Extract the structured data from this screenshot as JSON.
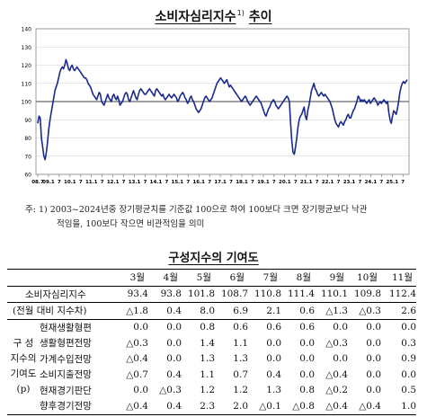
{
  "chart_title": "소비자심리지수",
  "chart_title_sup": "1)",
  "chart_title_suffix": "추이",
  "chart_data": {
    "type": "line",
    "title": "소비자심리지수 추이",
    "ylim": [
      60,
      140
    ],
    "yticks": [
      60,
      70,
      80,
      90,
      100,
      110,
      120,
      130,
      140
    ],
    "xticks": [
      "08.7",
      "09.1",
      "7",
      "10.1",
      "7",
      "11.1",
      "7",
      "12.1",
      "7",
      "13.1",
      "7",
      "14.1",
      "7",
      "15.1",
      "7",
      "16.1",
      "7",
      "17.1",
      "7",
      "18.1",
      "7",
      "19.1",
      "7",
      "20.1",
      "7",
      "21.1",
      "7",
      "22.1",
      "7",
      "23.1",
      "7",
      "24.1",
      "7",
      "25.1",
      "7"
    ],
    "x_start": "2008.7",
    "series": [
      {
        "color": "#1a2a8c",
        "values": [
          88,
          92,
          91,
          80,
          75,
          70,
          68,
          72,
          78,
          85,
          90,
          94,
          98,
          102,
          106,
          108,
          110,
          113,
          116,
          118,
          119,
          118,
          120,
          123,
          121,
          118,
          117,
          119,
          120,
          118,
          117,
          118,
          119,
          118,
          117,
          116,
          115,
          114,
          113,
          113,
          112,
          110,
          109,
          108,
          106,
          104,
          103,
          102,
          101,
          103,
          105,
          104,
          100,
          99,
          98,
          100,
          102,
          104,
          102,
          101,
          100,
          103,
          104,
          102,
          101,
          103,
          101,
          98,
          99,
          100,
          102,
          104,
          105,
          104,
          101,
          100,
          102,
          104,
          106,
          104,
          102,
          101,
          104,
          106,
          107,
          106,
          105,
          104,
          104,
          105,
          106,
          107,
          106,
          105,
          104,
          103,
          106,
          107,
          106,
          105,
          104,
          103,
          104,
          102,
          101,
          102,
          103,
          104,
          103,
          102,
          103,
          104,
          103,
          102,
          100,
          101,
          103,
          104,
          105,
          104,
          102,
          101,
          99,
          100,
          102,
          103,
          101,
          100,
          98,
          96,
          95,
          94,
          95,
          96,
          98,
          100,
          102,
          103,
          102,
          101,
          100,
          101,
          102,
          104,
          106,
          108,
          110,
          111,
          112,
          113,
          112,
          111,
          110,
          111,
          112,
          110,
          108,
          109,
          108,
          107,
          106,
          105,
          104,
          103,
          102,
          101,
          100,
          101,
          102,
          103,
          102,
          100,
          99,
          98,
          99,
          100,
          101,
          102,
          103,
          102,
          101,
          100,
          99,
          97,
          95,
          93,
          92,
          94,
          96,
          97,
          99,
          100,
          101,
          100,
          98,
          97,
          96,
          97,
          98,
          99,
          100,
          101,
          102,
          103,
          102,
          100,
          88,
          78,
          72,
          71,
          75,
          80,
          86,
          90,
          92,
          93,
          95,
          97,
          92,
          90,
          95,
          98,
          102,
          106,
          108,
          110,
          107,
          106,
          104,
          103,
          104,
          105,
          104,
          103,
          104,
          103,
          102,
          101,
          100,
          98,
          96,
          93,
          90,
          88,
          87,
          86,
          88,
          89,
          88,
          87,
          89,
          90,
          92,
          93,
          91,
          91,
          93,
          95,
          96,
          98,
          100,
          103,
          102,
          100,
          101,
          100,
          101,
          100,
          99,
          100,
          101,
          99,
          100,
          101,
          102,
          101,
          100,
          98,
          99,
          100,
          99,
          100,
          101,
          100,
          99,
          100,
          94,
          90,
          88,
          92,
          95,
          94,
          93,
          96,
          100,
          105,
          108,
          110,
          111,
          110,
          111,
          112
        ]
      }
    ]
  },
  "note": {
    "line1": "주: 1) 2003~2024년중 장기평균치를 기준값 100으로 하여 100보다 크면 장기평균보다 낙관",
    "line2": "적임을, 100보다 작으면 비관적임을 의미"
  },
  "table_title": "구성지수의 기여도",
  "table": {
    "months": [
      "3월",
      "4월",
      "5월",
      "6월",
      "7월",
      "8월",
      "9월",
      "10월",
      "11월"
    ],
    "main_label": "소비자심리지수",
    "main_values": [
      "93.4",
      "93.8",
      "101.8",
      "108.7",
      "110.8",
      "111.4",
      "110.1",
      "109.8",
      "112.4"
    ],
    "change_label": "(전월 대비 지수차)",
    "change_values": [
      "△1.8",
      "0.4",
      "8.0",
      "6.9",
      "2.1",
      "0.6",
      "△1.3",
      "△0.3",
      "2.6"
    ],
    "group_label_lines": [
      "구  성",
      "지수의",
      "기여도",
      "(p)"
    ],
    "rows": [
      {
        "label": "현재생활형편",
        "values": [
          "0.0",
          "0.0",
          "0.8",
          "0.6",
          "0.6",
          "0.6",
          "0.0",
          "0.0",
          "0.0"
        ]
      },
      {
        "label": "생활형편전망",
        "values": [
          "△0.3",
          "0.0",
          "1.4",
          "1.1",
          "0.0",
          "0.0",
          "△0.3",
          "0.0",
          "0.3"
        ]
      },
      {
        "label": "가계수입전망",
        "values": [
          "△0.4",
          "0.0",
          "1.3",
          "1.3",
          "0.0",
          "0.0",
          "0.0",
          "0.0",
          "0.9"
        ]
      },
      {
        "label": "소비지출전망",
        "values": [
          "△0.7",
          "0.4",
          "1.1",
          "0.7",
          "0.4",
          "0.0",
          "△0.4",
          "0.0",
          "0.0"
        ]
      },
      {
        "label": "현재경기판단",
        "values": [
          "0.0",
          "△0.3",
          "1.2",
          "1.2",
          "1.3",
          "0.8",
          "△0.2",
          "0.0",
          "0.5"
        ]
      },
      {
        "label": "향후경기전망",
        "values": [
          "△0.4",
          "0.4",
          "2.3",
          "2.0",
          "△0.1",
          "△0.8",
          "△0.4",
          "△0.4",
          "1.0"
        ]
      }
    ]
  }
}
